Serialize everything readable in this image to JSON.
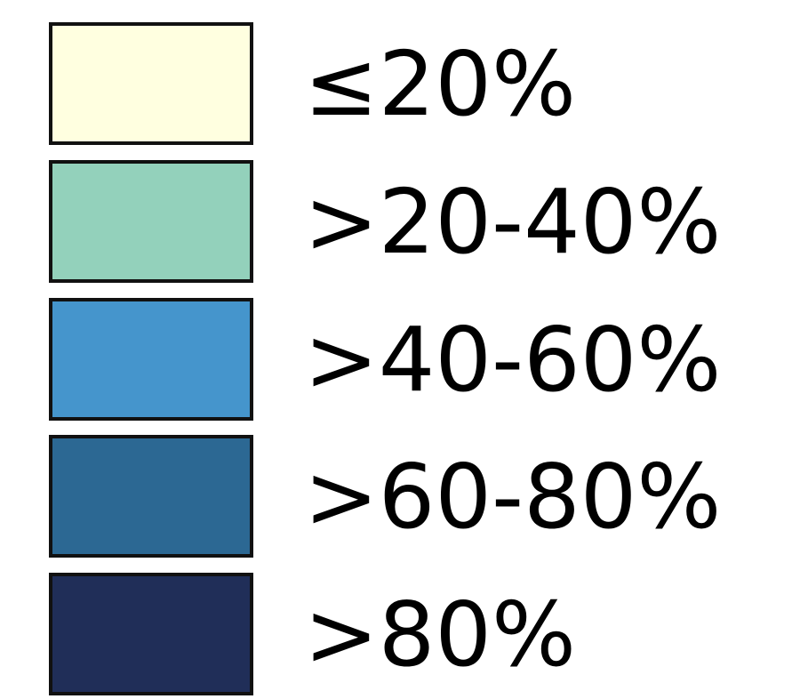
{
  "chart_data": {
    "type": "legend",
    "title": "",
    "entries": [
      {
        "label": "≤20%",
        "color": "#FFFFE0"
      },
      {
        "label": ">20-40%",
        "color": "#93D1BB"
      },
      {
        "label": ">40-60%",
        "color": "#4595CC"
      },
      {
        "label": ">60-80%",
        "color": "#2C6893"
      },
      {
        "label": ">80%",
        "color": "#202E58"
      }
    ]
  }
}
